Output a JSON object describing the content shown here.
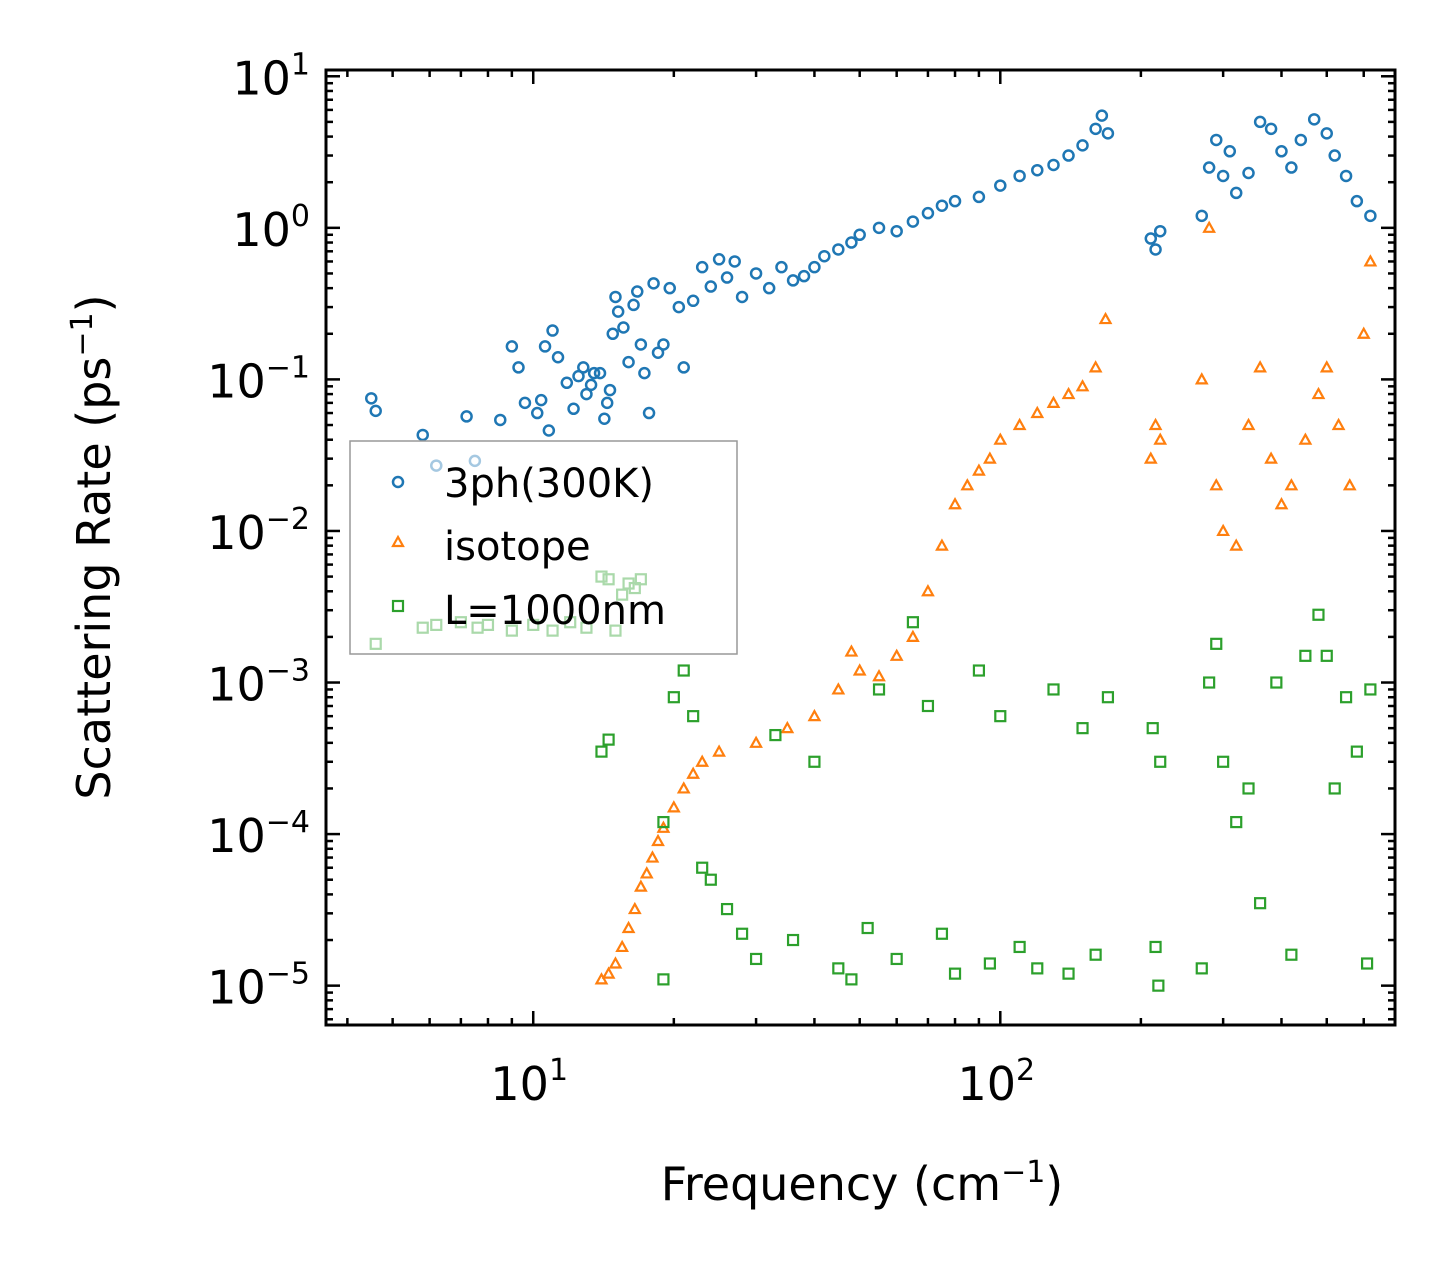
{
  "chart_data": {
    "type": "scatter",
    "xlabel": "Frequency (cm",
    "xlabel_exp": "−1",
    "xlabel_end": ")",
    "ylabel": "Scattering Rate (ps",
    "ylabel_exp": "−1",
    "ylabel_end": ")",
    "x_scale": "log",
    "y_scale": "log",
    "xlim": [
      3.6,
      700
    ],
    "ylim": [
      5.5e-06,
      11
    ],
    "x_ticks": [
      {
        "value": 10,
        "base": "10",
        "exp": "1"
      },
      {
        "value": 100,
        "base": "10",
        "exp": "2"
      }
    ],
    "y_ticks": [
      {
        "value": 10,
        "base": "10",
        "exp": "1"
      },
      {
        "value": 1,
        "base": "10",
        "exp": "0"
      },
      {
        "value": 0.1,
        "base": "10",
        "exp": "−1"
      },
      {
        "value": 0.01,
        "base": "10",
        "exp": "−2"
      },
      {
        "value": 0.001,
        "base": "10",
        "exp": "−3"
      },
      {
        "value": 0.0001,
        "base": "10",
        "exp": "−4"
      },
      {
        "value": 1e-05,
        "base": "10",
        "exp": "−5"
      }
    ],
    "legend_position": "center-left",
    "series": [
      {
        "name": "3ph(300K)",
        "marker": "circle",
        "color": "#1f77b4",
        "points": [
          [
            4.5,
            0.075
          ],
          [
            4.6,
            0.062
          ],
          [
            5.8,
            0.043
          ],
          [
            6.2,
            0.027
          ],
          [
            7.2,
            0.057
          ],
          [
            7.5,
            0.029
          ],
          [
            8.5,
            0.054
          ],
          [
            9.0,
            0.165
          ],
          [
            9.3,
            0.12
          ],
          [
            9.6,
            0.07
          ],
          [
            10.2,
            0.06
          ],
          [
            10.4,
            0.073
          ],
          [
            10.6,
            0.165
          ],
          [
            10.8,
            0.046
          ],
          [
            11.0,
            0.21
          ],
          [
            11.3,
            0.14
          ],
          [
            11.8,
            0.095
          ],
          [
            12.2,
            0.064
          ],
          [
            12.5,
            0.105
          ],
          [
            12.8,
            0.12
          ],
          [
            13.0,
            0.08
          ],
          [
            13.3,
            0.092
          ],
          [
            13.5,
            0.11
          ],
          [
            13.9,
            0.11
          ],
          [
            14.2,
            0.055
          ],
          [
            14.4,
            0.07
          ],
          [
            14.6,
            0.085
          ],
          [
            14.8,
            0.2
          ],
          [
            15.0,
            0.35
          ],
          [
            15.2,
            0.28
          ],
          [
            15.6,
            0.22
          ],
          [
            16.0,
            0.13
          ],
          [
            16.4,
            0.31
          ],
          [
            16.7,
            0.38
          ],
          [
            17.0,
            0.17
          ],
          [
            17.3,
            0.11
          ],
          [
            17.7,
            0.06
          ],
          [
            18.1,
            0.43
          ],
          [
            18.5,
            0.15
          ],
          [
            19.0,
            0.17
          ],
          [
            19.6,
            0.4
          ],
          [
            20.5,
            0.3
          ],
          [
            21.0,
            0.12
          ],
          [
            22.0,
            0.33
          ],
          [
            23.0,
            0.55
          ],
          [
            24.0,
            0.41
          ],
          [
            25.0,
            0.62
          ],
          [
            26.0,
            0.47
          ],
          [
            27.0,
            0.6
          ],
          [
            28.0,
            0.35
          ],
          [
            30.0,
            0.5
          ],
          [
            32.0,
            0.4
          ],
          [
            34.0,
            0.55
          ],
          [
            36.0,
            0.45
          ],
          [
            38.0,
            0.48
          ],
          [
            40.0,
            0.55
          ],
          [
            42.0,
            0.65
          ],
          [
            45.0,
            0.72
          ],
          [
            48.0,
            0.8
          ],
          [
            50.0,
            0.9
          ],
          [
            55.0,
            1.0
          ],
          [
            60.0,
            0.95
          ],
          [
            65.0,
            1.1
          ],
          [
            70.0,
            1.25
          ],
          [
            75.0,
            1.4
          ],
          [
            80.0,
            1.5
          ],
          [
            90.0,
            1.6
          ],
          [
            100.0,
            1.9
          ],
          [
            110.0,
            2.2
          ],
          [
            120.0,
            2.4
          ],
          [
            130.0,
            2.6
          ],
          [
            140.0,
            3.0
          ],
          [
            150.0,
            3.5
          ],
          [
            160.0,
            4.5
          ],
          [
            165.0,
            5.5
          ],
          [
            170.0,
            4.2
          ],
          [
            210.0,
            0.85
          ],
          [
            215.0,
            0.72
          ],
          [
            220.0,
            0.95
          ],
          [
            270.0,
            1.2
          ],
          [
            280.0,
            2.5
          ],
          [
            290.0,
            3.8
          ],
          [
            300.0,
            2.2
          ],
          [
            310.0,
            3.2
          ],
          [
            320.0,
            1.7
          ],
          [
            340.0,
            2.3
          ],
          [
            360.0,
            5.0
          ],
          [
            380.0,
            4.5
          ],
          [
            400.0,
            3.2
          ],
          [
            420.0,
            2.5
          ],
          [
            440.0,
            3.8
          ],
          [
            470.0,
            5.2
          ],
          [
            500.0,
            4.2
          ],
          [
            520.0,
            3.0
          ],
          [
            550.0,
            2.2
          ],
          [
            580.0,
            1.5
          ],
          [
            620.0,
            1.2
          ]
        ]
      },
      {
        "name": "isotope",
        "marker": "triangle",
        "color": "#ff7f0e",
        "points": [
          [
            14.0,
            1.1e-05
          ],
          [
            14.5,
            1.2e-05
          ],
          [
            15.0,
            1.4e-05
          ],
          [
            15.5,
            1.8e-05
          ],
          [
            16.0,
            2.4e-05
          ],
          [
            16.5,
            3.2e-05
          ],
          [
            17.0,
            4.5e-05
          ],
          [
            17.5,
            5.5e-05
          ],
          [
            18.0,
            7e-05
          ],
          [
            18.5,
            9e-05
          ],
          [
            19.0,
            0.00011
          ],
          [
            20.0,
            0.00015
          ],
          [
            21.0,
            0.0002
          ],
          [
            22.0,
            0.00025
          ],
          [
            23.0,
            0.0003
          ],
          [
            25.0,
            0.00035
          ],
          [
            30.0,
            0.0004
          ],
          [
            35.0,
            0.0005
          ],
          [
            40.0,
            0.0006
          ],
          [
            45.0,
            0.0009
          ],
          [
            48.0,
            0.0016
          ],
          [
            50.0,
            0.0012
          ],
          [
            55.0,
            0.0011
          ],
          [
            60.0,
            0.0015
          ],
          [
            65.0,
            0.002
          ],
          [
            70.0,
            0.004
          ],
          [
            75.0,
            0.008
          ],
          [
            80.0,
            0.015
          ],
          [
            85.0,
            0.02
          ],
          [
            90.0,
            0.025
          ],
          [
            95.0,
            0.03
          ],
          [
            100.0,
            0.04
          ],
          [
            110.0,
            0.05
          ],
          [
            120.0,
            0.06
          ],
          [
            130.0,
            0.07
          ],
          [
            140.0,
            0.08
          ],
          [
            150.0,
            0.09
          ],
          [
            160.0,
            0.12
          ],
          [
            168.0,
            0.25
          ],
          [
            210.0,
            0.03
          ],
          [
            215.0,
            0.05
          ],
          [
            220.0,
            0.04
          ],
          [
            270.0,
            0.1
          ],
          [
            280.0,
            1.0
          ],
          [
            290.0,
            0.02
          ],
          [
            300.0,
            0.01
          ],
          [
            320.0,
            0.008
          ],
          [
            340.0,
            0.05
          ],
          [
            360.0,
            0.12
          ],
          [
            380.0,
            0.03
          ],
          [
            400.0,
            0.015
          ],
          [
            420.0,
            0.02
          ],
          [
            450.0,
            0.04
          ],
          [
            480.0,
            0.08
          ],
          [
            500.0,
            0.12
          ],
          [
            530.0,
            0.05
          ],
          [
            560.0,
            0.02
          ],
          [
            600.0,
            0.2
          ],
          [
            620.0,
            0.6
          ]
        ]
      },
      {
        "name": "L=1000nm",
        "marker": "square",
        "color": "#2ca02c",
        "points": [
          [
            4.6,
            0.0018
          ],
          [
            5.8,
            0.0023
          ],
          [
            6.2,
            0.0024
          ],
          [
            7.0,
            0.0025
          ],
          [
            7.6,
            0.0023
          ],
          [
            8.0,
            0.0024
          ],
          [
            9.0,
            0.0022
          ],
          [
            10.0,
            0.0024
          ],
          [
            11.0,
            0.0022
          ],
          [
            12.0,
            0.0025
          ],
          [
            13.0,
            0.0023
          ],
          [
            14.0,
            0.005
          ],
          [
            14.5,
            0.0048
          ],
          [
            15.0,
            0.0022
          ],
          [
            15.5,
            0.0038
          ],
          [
            16.0,
            0.0045
          ],
          [
            16.5,
            0.0042
          ],
          [
            17.0,
            0.0048
          ],
          [
            14.0,
            0.00035
          ],
          [
            14.5,
            0.00042
          ],
          [
            19.0,
            0.00012
          ],
          [
            19.0,
            1.1e-05
          ],
          [
            20.0,
            0.0008
          ],
          [
            21.0,
            0.0012
          ],
          [
            22.0,
            0.0006
          ],
          [
            23.0,
            6e-05
          ],
          [
            24.0,
            5e-05
          ],
          [
            26.0,
            3.2e-05
          ],
          [
            28.0,
            2.2e-05
          ],
          [
            30.0,
            1.5e-05
          ],
          [
            33.0,
            0.00045
          ],
          [
            36.0,
            2e-05
          ],
          [
            40.0,
            0.0003
          ],
          [
            45.0,
            1.3e-05
          ],
          [
            48.0,
            1.1e-05
          ],
          [
            52.0,
            2.4e-05
          ],
          [
            55.0,
            0.0009
          ],
          [
            60.0,
            1.5e-05
          ],
          [
            65.0,
            0.0025
          ],
          [
            70.0,
            0.0007
          ],
          [
            75.0,
            2.2e-05
          ],
          [
            80.0,
            1.2e-05
          ],
          [
            90.0,
            0.0012
          ],
          [
            95.0,
            1.4e-05
          ],
          [
            100.0,
            0.0006
          ],
          [
            110.0,
            1.8e-05
          ],
          [
            120.0,
            1.3e-05
          ],
          [
            130.0,
            0.0009
          ],
          [
            140.0,
            1.2e-05
          ],
          [
            150.0,
            0.0005
          ],
          [
            160.0,
            1.6e-05
          ],
          [
            170.0,
            0.0008
          ],
          [
            212.0,
            0.0005
          ],
          [
            215.0,
            1.8e-05
          ],
          [
            218.0,
            1e-05
          ],
          [
            220.0,
            0.0003
          ],
          [
            270.0,
            1.3e-05
          ],
          [
            280.0,
            0.001
          ],
          [
            290.0,
            0.0018
          ],
          [
            300.0,
            0.0003
          ],
          [
            320.0,
            0.00012
          ],
          [
            340.0,
            0.0002
          ],
          [
            360.0,
            3.5e-05
          ],
          [
            390.0,
            0.001
          ],
          [
            420.0,
            1.6e-05
          ],
          [
            450.0,
            0.0015
          ],
          [
            480.0,
            0.0028
          ],
          [
            500.0,
            0.0015
          ],
          [
            520.0,
            0.0002
          ],
          [
            550.0,
            0.0008
          ],
          [
            580.0,
            0.00035
          ],
          [
            610.0,
            1.4e-05
          ],
          [
            620.0,
            0.0009
          ]
        ]
      }
    ]
  }
}
